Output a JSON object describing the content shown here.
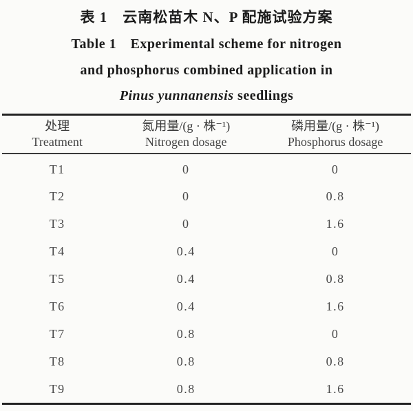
{
  "caption": {
    "line1_cn": "表 1　云南松苗木 N、P 配施试验方案",
    "line2_en": "Table 1　Experimental scheme for nitrogen",
    "line3_en": "and phosphorus combined application in",
    "line4_species": "Pinus yunnanensis",
    "line4_rest": " seedlings"
  },
  "table": {
    "columns": [
      {
        "cn": "处理",
        "en": "Treatment"
      },
      {
        "cn": "氮用量/(g · 株⁻¹)",
        "en": "Nitrogen dosage"
      },
      {
        "cn": "磷用量/(g · 株⁻¹)",
        "en": "Phosphorus dosage"
      }
    ],
    "rows": [
      {
        "treatment": "T1",
        "n": "0",
        "p": "0"
      },
      {
        "treatment": "T2",
        "n": "0",
        "p": "0.8"
      },
      {
        "treatment": "T3",
        "n": "0",
        "p": "1.6"
      },
      {
        "treatment": "T4",
        "n": "0.4",
        "p": "0"
      },
      {
        "treatment": "T5",
        "n": "0.4",
        "p": "0.8"
      },
      {
        "treatment": "T6",
        "n": "0.4",
        "p": "1.6"
      },
      {
        "treatment": "T7",
        "n": "0.8",
        "p": "0"
      },
      {
        "treatment": "T8",
        "n": "0.8",
        "p": "0.8"
      },
      {
        "treatment": "T9",
        "n": "0.8",
        "p": "1.6"
      }
    ]
  },
  "colors": {
    "background": "#fbfbf9",
    "title_text": "#1c1c1c",
    "body_text": "#4a4a4a",
    "rule": "#232323"
  }
}
